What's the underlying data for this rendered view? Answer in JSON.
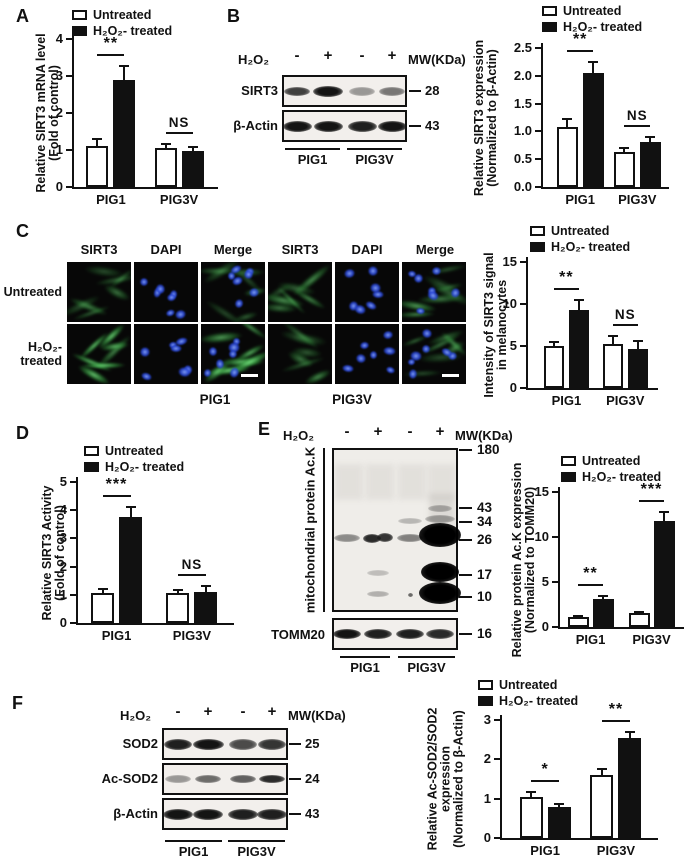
{
  "figure": {
    "panel_labels": {
      "A": "A",
      "B": "B",
      "C": "C",
      "D": "D",
      "E": "E",
      "F": "F"
    }
  },
  "legend": {
    "untreated": "Untreated",
    "treated": "H₂O₂- treated"
  },
  "blots": {
    "B": {
      "treatment_label": "H₂O₂",
      "lane_signs": [
        "-",
        "+",
        "-",
        "+"
      ],
      "mw_header": "MW(KDa)",
      "rows": [
        {
          "label": "SIRT3",
          "mw": "28",
          "band_intensities": [
            0.8,
            1,
            0.4,
            0.55
          ]
        },
        {
          "label": "β-Actin",
          "mw": "43",
          "band_intensities": [
            1,
            1,
            0.95,
            1
          ]
        }
      ],
      "groups": [
        "PIG1",
        "PIG3V"
      ]
    },
    "E": {
      "treatment_label": "H₂O₂",
      "lane_signs": [
        "-",
        "+",
        "-",
        "+"
      ],
      "mw_header": "MW(KDa)",
      "side_label": "mitochondrial protein Ac.K",
      "mw_markers": [
        "180",
        "43",
        "34",
        "26",
        "17",
        "10"
      ],
      "loading_row": {
        "label": "TOMM20",
        "mw": "16",
        "band_intensities": [
          1,
          0.95,
          0.95,
          0.9
        ]
      },
      "groups": [
        "PIG1",
        "PIG3V"
      ]
    },
    "F": {
      "treatment_label": "H₂O₂",
      "lane_signs": [
        "-",
        "+",
        "-",
        "+"
      ],
      "mw_header": "MW(KDa)",
      "rows": [
        {
          "label": "SOD2",
          "mw": "25",
          "band_intensities": [
            0.95,
            1,
            0.75,
            0.85
          ]
        },
        {
          "label": "Ac-SOD2",
          "mw": "24",
          "band_intensities": [
            0.4,
            0.6,
            0.65,
            0.9
          ]
        },
        {
          "label": "β-Actin",
          "mw": "43",
          "band_intensities": [
            1,
            1,
            0.95,
            0.95
          ]
        }
      ],
      "groups": [
        "PIG1",
        "PIG3V"
      ]
    }
  },
  "if_panel": {
    "col_headers": [
      "SIRT3",
      "DAPI",
      "Merge",
      "SIRT3",
      "DAPI",
      "Merge"
    ],
    "row_labels": [
      [
        "Untreated"
      ],
      [
        "H₂O₂-",
        "treated"
      ]
    ],
    "groups": [
      "PIG1",
      "PIG3V"
    ],
    "stain_colors": {
      "sirt3": "#3fae4a",
      "dapi": "#2b50e8"
    }
  },
  "chart_data": [
    {
      "id": "A",
      "type": "bar",
      "title": "",
      "ylabel_lines": [
        "Relative SIRT3 mRNA level",
        "(Fold of control)"
      ],
      "categories": [
        "PIG1",
        "PIG3V"
      ],
      "ylim": [
        0,
        4
      ],
      "ytick_labels": [
        "0",
        "1",
        "2",
        "3",
        "4"
      ],
      "series": [
        {
          "name": "Untreated",
          "values": [
            1.1,
            1.05
          ],
          "errors": [
            0.2,
            0.1
          ]
        },
        {
          "name": "H₂O₂- treated",
          "values": [
            2.9,
            0.98
          ],
          "errors": [
            0.38,
            0.1
          ]
        }
      ],
      "significance": [
        {
          "group": 0,
          "label": "**"
        },
        {
          "group": 1,
          "label": "NS"
        }
      ],
      "legend_position": "top"
    },
    {
      "id": "B",
      "type": "bar",
      "title": "",
      "ylabel_lines": [
        "Relative SIRT3 expression",
        "(Normalized to β-Actin)"
      ],
      "categories": [
        "PIG1",
        "PIG3V"
      ],
      "ylim": [
        0,
        2.5
      ],
      "ytick_labels": [
        "0.0",
        "0.5",
        "1.0",
        "1.5",
        "2.0",
        "2.5"
      ],
      "series": [
        {
          "name": "Untreated",
          "values": [
            1.08,
            0.63
          ],
          "errors": [
            0.15,
            0.08
          ]
        },
        {
          "name": "H₂O₂- treated",
          "values": [
            2.05,
            0.81
          ],
          "errors": [
            0.2,
            0.09
          ]
        }
      ],
      "significance": [
        {
          "group": 0,
          "label": "**"
        },
        {
          "group": 1,
          "label": "NS"
        }
      ],
      "legend_position": "top"
    },
    {
      "id": "C",
      "type": "bar",
      "title": "",
      "ylabel_lines": [
        "Intensity of SIRT3 signal",
        "in melanocytes"
      ],
      "categories": [
        "PIG1",
        "PIG3V"
      ],
      "ylim": [
        0,
        15
      ],
      "ytick_labels": [
        "0",
        "5",
        "10",
        "15"
      ],
      "series": [
        {
          "name": "Untreated",
          "values": [
            5.0,
            5.2
          ],
          "errors": [
            0.5,
            1.0
          ]
        },
        {
          "name": "H₂O₂- treated",
          "values": [
            9.3,
            4.7
          ],
          "errors": [
            1.2,
            0.9
          ]
        }
      ],
      "significance": [
        {
          "group": 0,
          "label": "**"
        },
        {
          "group": 1,
          "label": "NS"
        }
      ],
      "legend_position": "top"
    },
    {
      "id": "D",
      "type": "bar",
      "title": "",
      "ylabel_lines": [
        "Relative SIRT3 Activity",
        "(Fold of control)"
      ],
      "categories": [
        "PIG1",
        "PIG3V"
      ],
      "ylim": [
        0,
        5
      ],
      "ytick_labels": [
        "0",
        "1",
        "2",
        "3",
        "4",
        "5"
      ],
      "series": [
        {
          "name": "Untreated",
          "values": [
            1.05,
            1.05
          ],
          "errors": [
            0.15,
            0.12
          ]
        },
        {
          "name": "H₂O₂- treated",
          "values": [
            3.75,
            1.1
          ],
          "errors": [
            0.35,
            0.22
          ]
        }
      ],
      "significance": [
        {
          "group": 0,
          "label": "***"
        },
        {
          "group": 1,
          "label": "NS"
        }
      ],
      "legend_position": "top"
    },
    {
      "id": "E",
      "type": "bar",
      "title": "",
      "ylabel_lines": [
        "Relative protein Ac.K expression",
        "(Normalized to TOMM20)"
      ],
      "categories": [
        "PIG1",
        "PIG3V"
      ],
      "ylim": [
        0,
        15
      ],
      "ytick_labels": [
        "0",
        "5",
        "10",
        "15"
      ],
      "series": [
        {
          "name": "Untreated",
          "values": [
            1.1,
            1.55
          ],
          "errors": [
            0.15,
            0.1
          ]
        },
        {
          "name": "H₂O₂- treated",
          "values": [
            3.1,
            11.8
          ],
          "errors": [
            0.35,
            0.95
          ]
        }
      ],
      "significance": [
        {
          "group": 0,
          "label": "**"
        },
        {
          "group": 1,
          "label": "***"
        }
      ],
      "legend_position": "top"
    },
    {
      "id": "F",
      "type": "bar",
      "title": "",
      "ylabel_lines": [
        "Relative Ac-SOD2/SOD2",
        "expression",
        "(Normalized to β-Actin)"
      ],
      "categories": [
        "PIG1",
        "PIG3V"
      ],
      "ylim": [
        0,
        3
      ],
      "ytick_labels": [
        "0",
        "1",
        "2",
        "3"
      ],
      "series": [
        {
          "name": "Untreated",
          "values": [
            1.05,
            1.6
          ],
          "errors": [
            0.12,
            0.15
          ]
        },
        {
          "name": "H₂O₂- treated",
          "values": [
            0.8,
            2.55
          ],
          "errors": [
            0.06,
            0.15
          ]
        }
      ],
      "significance": [
        {
          "group": 0,
          "label": "*"
        },
        {
          "group": 1,
          "label": "**"
        }
      ],
      "legend_position": "top"
    }
  ]
}
